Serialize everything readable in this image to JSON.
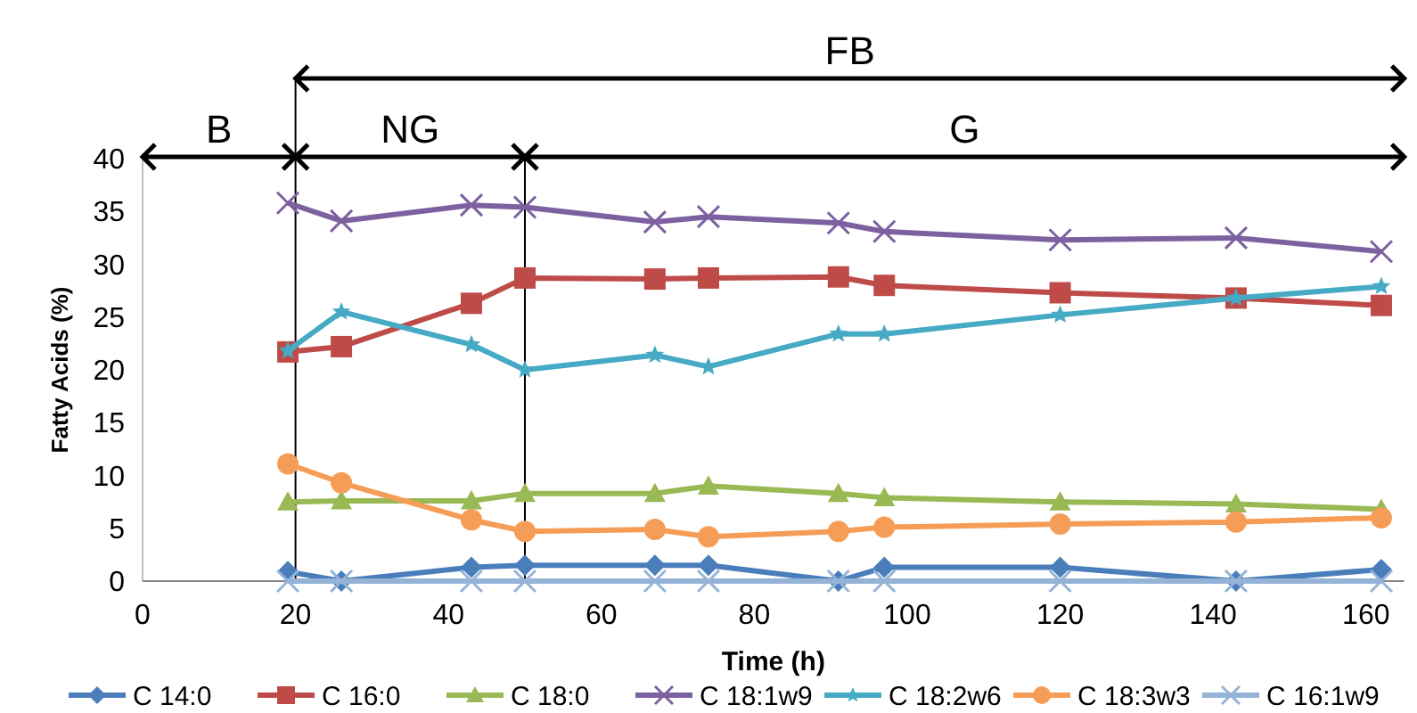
{
  "chart_data": {
    "type": "line",
    "xlabel": "Time (h)",
    "ylabel": "Fatty Acids (%)",
    "x": [
      19,
      26,
      43,
      50,
      67,
      74,
      91,
      97,
      120,
      143,
      162
    ],
    "xlim": [
      0,
      165
    ],
    "xticks": [
      0,
      20,
      40,
      60,
      80,
      100,
      120,
      140,
      160
    ],
    "ylim": [
      0,
      40
    ],
    "yticks": [
      0,
      5,
      10,
      15,
      20,
      25,
      30,
      35,
      40
    ],
    "legend": "bottom",
    "series": [
      {
        "name": "C 14:0",
        "color": "#4a7ebb",
        "marker": "diamond",
        "values": [
          0.9,
          0,
          1.3,
          1.5,
          1.5,
          1.5,
          0,
          1.3,
          1.3,
          0,
          1.1
        ]
      },
      {
        "name": "C 16:0",
        "color": "#be4b48",
        "marker": "square",
        "values": [
          21.7,
          22.2,
          26.3,
          28.7,
          28.6,
          28.7,
          28.8,
          28.0,
          27.3,
          26.8,
          26.1
        ]
      },
      {
        "name": "C 18:0",
        "color": "#98b954",
        "marker": "triangle",
        "values": [
          7.5,
          7.6,
          7.6,
          8.3,
          8.3,
          9.0,
          8.3,
          7.9,
          7.5,
          7.3,
          6.8
        ]
      },
      {
        "name": "C 18:1w9",
        "color": "#7d60a0",
        "marker": "cross",
        "values": [
          35.8,
          34.1,
          35.6,
          35.4,
          34.0,
          34.5,
          33.9,
          33.1,
          32.3,
          32.5,
          31.2
        ]
      },
      {
        "name": "C 18:2w6",
        "color": "#46aac5",
        "marker": "star",
        "values": [
          21.8,
          25.5,
          22.4,
          20.0,
          21.4,
          20.3,
          23.4,
          23.4,
          25.2,
          26.8,
          27.9
        ]
      },
      {
        "name": "C 18:3w3",
        "color": "#f59d56",
        "marker": "circle",
        "values": [
          11.1,
          9.3,
          5.8,
          4.7,
          4.9,
          4.2,
          4.7,
          5.1,
          5.4,
          5.6,
          6.0
        ]
      },
      {
        "name": "C 16:1w9",
        "color": "#95b3d7",
        "marker": "cross",
        "values": [
          0,
          0,
          0,
          0,
          0,
          0,
          0,
          0,
          0,
          0,
          0
        ]
      }
    ],
    "ref_lines": [
      {
        "axis": "x",
        "value": 20,
        "color": "#000000"
      },
      {
        "axis": "x",
        "value": 50,
        "color": "#000000"
      }
    ],
    "annotations": [
      "B",
      "NG",
      "G",
      "FB"
    ]
  }
}
